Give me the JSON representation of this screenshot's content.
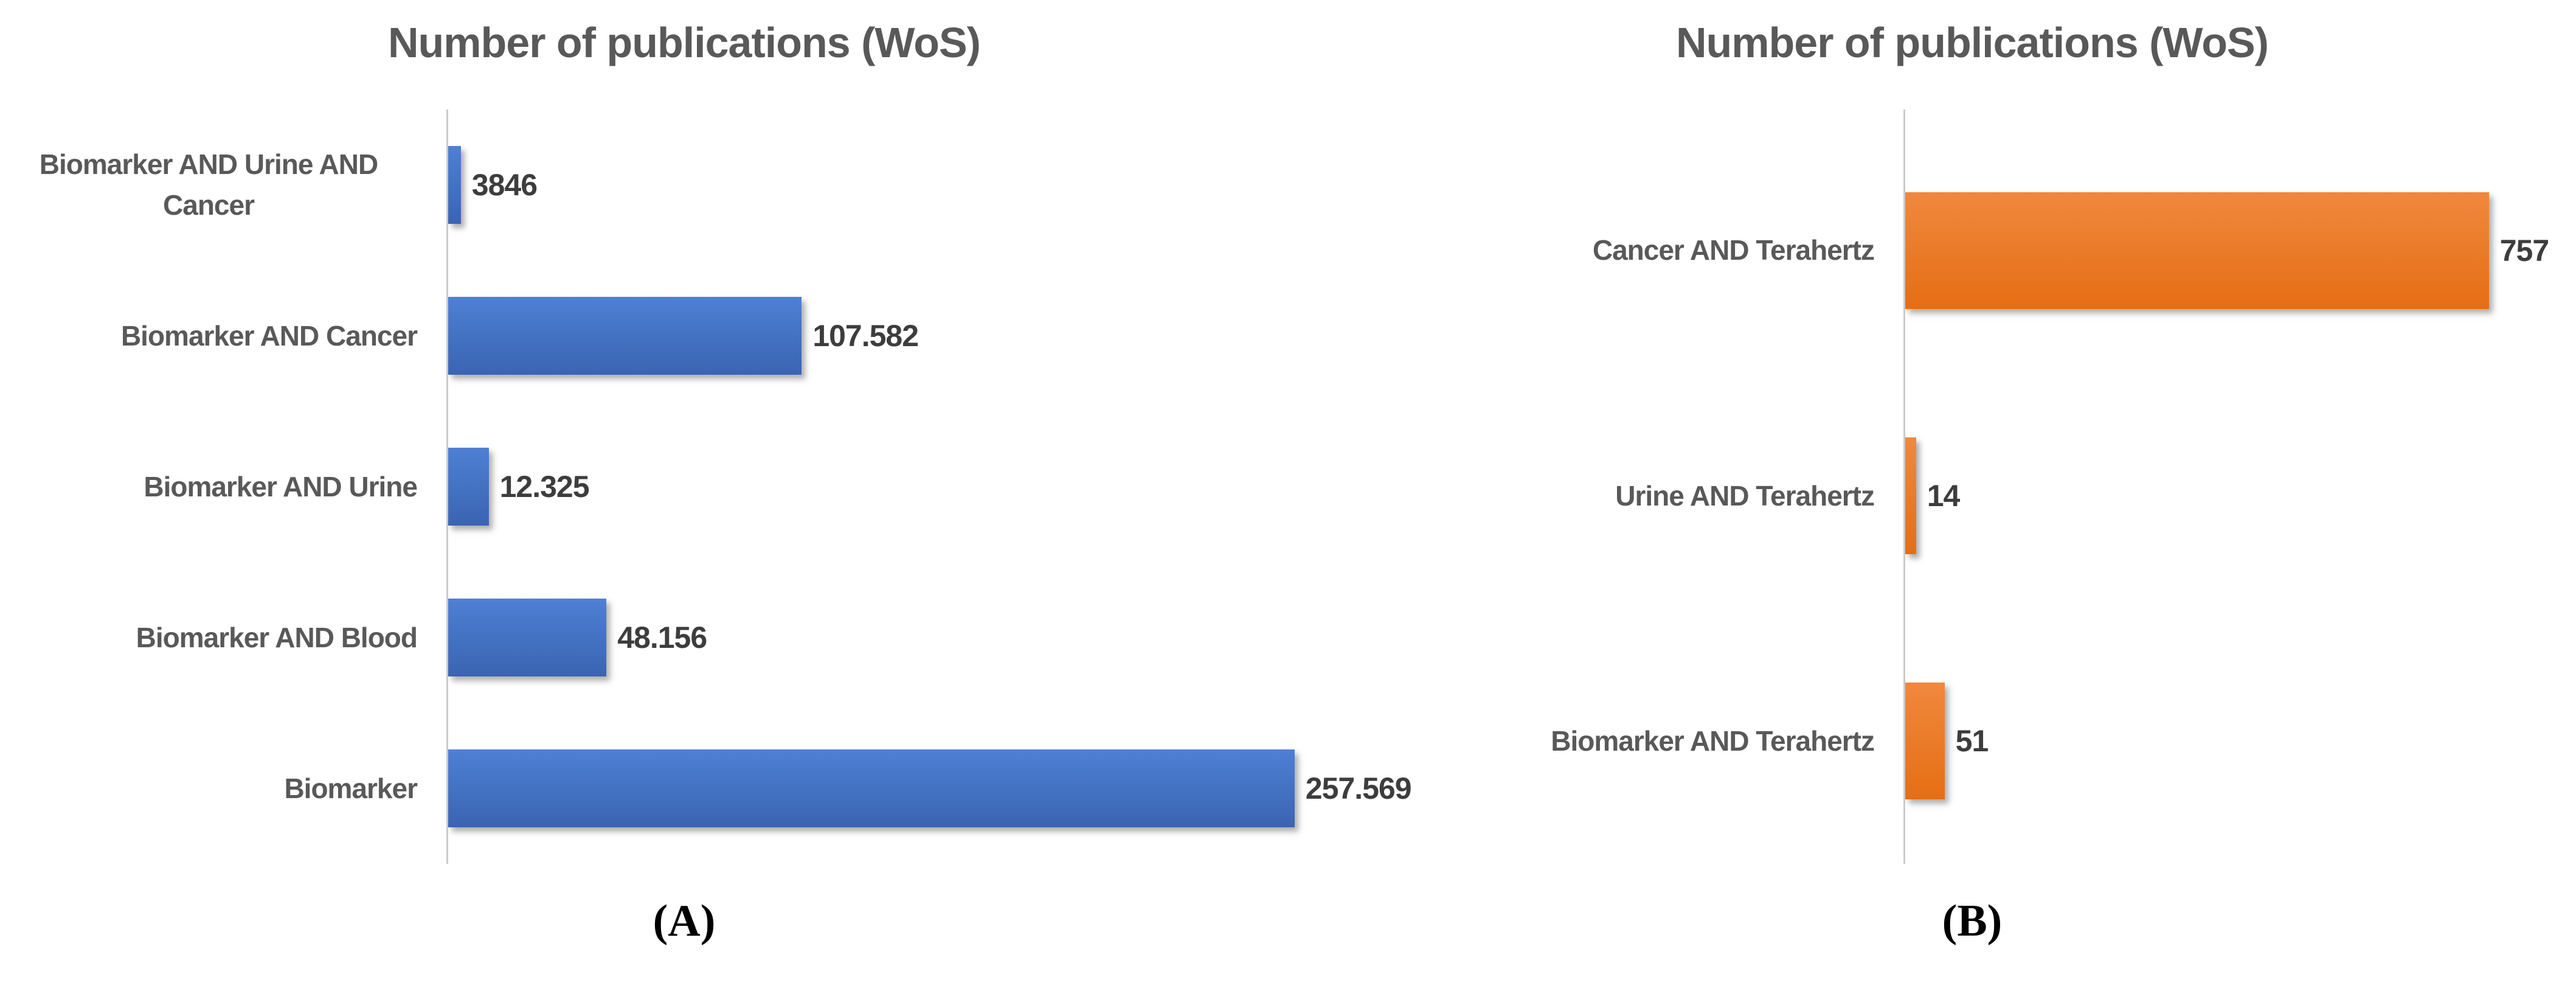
{
  "figure": {
    "panel_a_label": "(A)",
    "panel_b_label": "(B)"
  },
  "colors": {
    "title_text": "#595959",
    "category_text": "#595959",
    "value_text": "#3d3d3d",
    "axis_line": "#c9cbcd",
    "blue_bar": "#4472C4",
    "orange_bar": "#ED7D31"
  },
  "chart_data": [
    {
      "type": "bar",
      "orientation": "horizontal",
      "title": "Number of publications (WoS)",
      "panel_label": "(A)",
      "categories": [
        "Biomarker AND Urine AND Cancer",
        "Biomarker AND Cancer",
        "Biomarker AND Urine",
        "Biomarker AND Blood",
        "Biomarker"
      ],
      "values": [
        3846,
        107582,
        12325,
        48156,
        257569
      ],
      "value_labels": [
        "3846",
        "107.582",
        "12.325",
        "48.156",
        "257.569"
      ],
      "bar_color": "#4472C4",
      "bar_gradient": [
        "#4e80d4",
        "#3a64b2"
      ],
      "xlim": [
        0,
        280000
      ],
      "xlabel": "",
      "ylabel": "",
      "grid": false,
      "legend": false,
      "data_labels": true
    },
    {
      "type": "bar",
      "orientation": "horizontal",
      "title": "Number of publications (WoS)",
      "panel_label": "(B)",
      "categories": [
        "Cancer AND Terahertz",
        "Urine AND Terahertz",
        "Biomarker AND Terahertz"
      ],
      "values": [
        757,
        14,
        51
      ],
      "value_labels": [
        "757",
        "14",
        "51"
      ],
      "bar_color": "#ED7D31",
      "bar_gradient": [
        "#f0883e",
        "#e56e14"
      ],
      "xlim": [
        0,
        870
      ],
      "xlabel": "",
      "ylabel": "",
      "grid": false,
      "legend": false,
      "data_labels": true
    }
  ]
}
